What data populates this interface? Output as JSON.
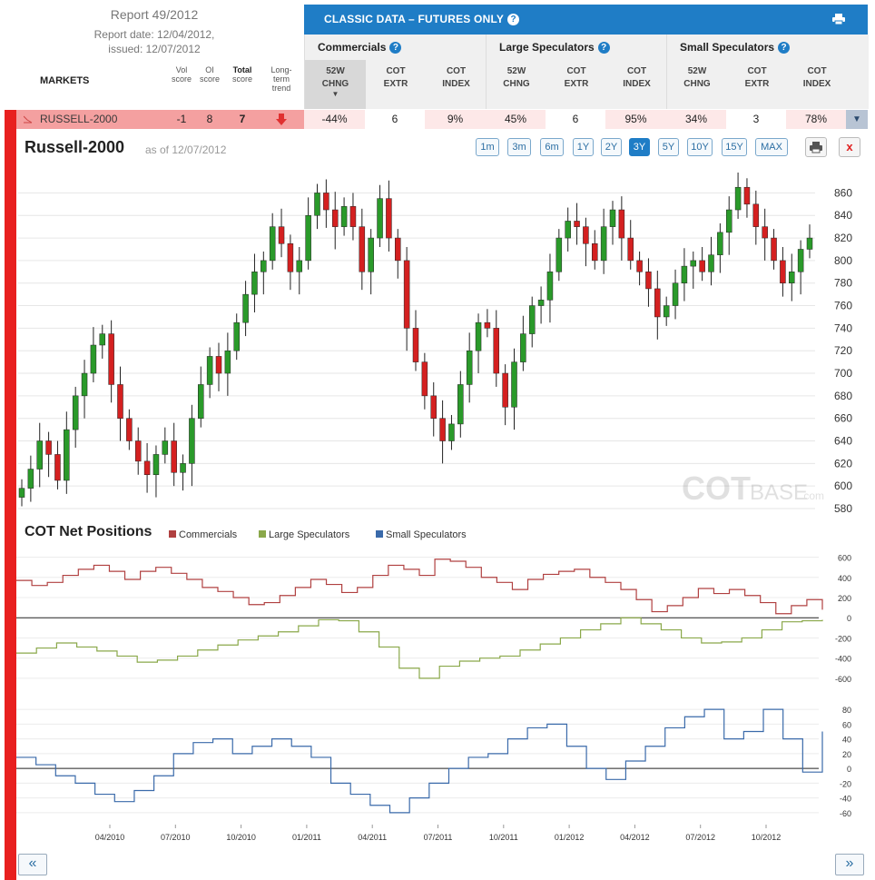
{
  "report": {
    "title": "Report 49/2012",
    "date_line": "Report date: 12/04/2012,",
    "issued_line": "issued: 12/07/2012"
  },
  "columns": {
    "markets": "MARKETS",
    "vol_score": [
      "Vol",
      "score"
    ],
    "oi_score": [
      "OI",
      "score"
    ],
    "total_score": [
      "Total",
      "score"
    ],
    "long_term": [
      "Long-",
      "term",
      "trend"
    ]
  },
  "banner": {
    "title": "CLASSIC DATA – FUTURES ONLY",
    "help": "?"
  },
  "groups": [
    {
      "title": "Commercials",
      "subs": [
        [
          "52W",
          "CHNG"
        ],
        [
          "COT",
          "EXTR"
        ],
        [
          "COT",
          "INDEX"
        ]
      ]
    },
    {
      "title": "Large Speculators",
      "subs": [
        [
          "52W",
          "CHNG"
        ],
        [
          "COT",
          "EXTR"
        ],
        [
          "COT",
          "INDEX"
        ]
      ]
    },
    {
      "title": "Small Speculators",
      "subs": [
        [
          "52W",
          "CHNG"
        ],
        [
          "COT",
          "EXTR"
        ],
        [
          "COT",
          "INDEX"
        ]
      ]
    }
  ],
  "row": {
    "market": "RUSSELL-2000",
    "vol": "-1",
    "oi": "8",
    "total": "7",
    "trend": "down",
    "values": [
      "-44%",
      "6",
      "9%",
      "45%",
      "6",
      "95%",
      "34%",
      "3",
      "78%"
    ]
  },
  "chart": {
    "title": "Russell-2000",
    "as_of": "as of 12/07/2012",
    "ranges": [
      "1m",
      "3m",
      "6m",
      "1Y",
      "2Y",
      "3Y",
      "5Y",
      "10Y",
      "15Y",
      "MAX"
    ],
    "active_range": "3Y",
    "close_label": "x",
    "watermark_main": "COT",
    "watermark_sub": "BASE",
    "watermark_tld": ".com",
    "price_ticks": [
      "860",
      "840",
      "820",
      "800",
      "780",
      "760",
      "740",
      "720",
      "700",
      "680",
      "660",
      "640",
      "620",
      "600",
      "580"
    ],
    "cot_title": "COT Net Positions",
    "legend": [
      "Commercials",
      "Large Speculators",
      "Small Speculators"
    ],
    "legend_colors": [
      "#b04040",
      "#8aa84a",
      "#3a6aaa"
    ],
    "net_ticks": [
      "600",
      "400",
      "200",
      "0",
      "-200",
      "-400",
      "-600"
    ],
    "small_ticks": [
      "80",
      "60",
      "40",
      "20",
      "0",
      "-20",
      "-40",
      "-60"
    ],
    "x_labels": [
      "04/2010",
      "07/2010",
      "10/2010",
      "01/2011",
      "04/2011",
      "07/2011",
      "10/2011",
      "01/2012",
      "04/2012",
      "07/2012",
      "10/2012"
    ]
  },
  "chart_data": [
    {
      "type": "candlestick",
      "title": "Russell-2000",
      "ylim": [
        580,
        870
      ],
      "x_range": [
        "12/2009",
        "12/2012"
      ],
      "close": [
        598,
        615,
        640,
        628,
        605,
        650,
        680,
        700,
        725,
        735,
        690,
        660,
        640,
        622,
        610,
        628,
        640,
        612,
        620,
        660,
        690,
        715,
        700,
        720,
        745,
        770,
        790,
        800,
        830,
        815,
        790,
        800,
        840,
        860,
        845,
        830,
        848,
        830,
        790,
        820,
        855,
        820,
        800,
        740,
        710,
        680,
        660,
        640,
        655,
        690,
        720,
        745,
        740,
        700,
        670,
        710,
        735,
        760,
        765,
        790,
        820,
        835,
        830,
        815,
        800,
        830,
        845,
        820,
        800,
        790,
        775,
        750,
        760,
        780,
        795,
        800,
        790,
        805,
        825,
        845,
        865,
        850,
        830,
        820,
        800,
        780,
        790,
        810,
        820
      ]
    },
    {
      "type": "line",
      "title": "COT Net Positions",
      "series_names": [
        "Commercials",
        "Large Speculators",
        "Small Speculators"
      ],
      "commercials": [
        370,
        320,
        350,
        420,
        480,
        520,
        460,
        380,
        460,
        500,
        440,
        380,
        300,
        260,
        200,
        130,
        150,
        220,
        300,
        380,
        330,
        250,
        300,
        420,
        520,
        480,
        420,
        580,
        560,
        500,
        400,
        350,
        280,
        380,
        430,
        460,
        480,
        400,
        350,
        280,
        180,
        60,
        120,
        200,
        290,
        240,
        280,
        220,
        150,
        40,
        120,
        180,
        80
      ],
      "large_speculators": [
        -350,
        -300,
        -250,
        -290,
        -330,
        -380,
        -440,
        -420,
        -380,
        -320,
        -270,
        -220,
        -180,
        -140,
        -80,
        -20,
        -30,
        -140,
        -290,
        -500,
        -600,
        -480,
        -430,
        -400,
        -380,
        -320,
        -260,
        -200,
        -120,
        -60,
        0,
        -60,
        -120,
        -200,
        -250,
        -240,
        -200,
        -120,
        -40,
        -30,
        -20
      ],
      "small_speculators": [
        15,
        5,
        -10,
        -20,
        -35,
        -45,
        -30,
        -10,
        20,
        35,
        40,
        20,
        30,
        40,
        30,
        15,
        -20,
        -35,
        -50,
        -60,
        -40,
        -20,
        0,
        15,
        20,
        40,
        55,
        60,
        30,
        0,
        -15,
        10,
        30,
        55,
        70,
        80,
        40,
        50,
        80,
        40,
        -5,
        50
      ],
      "ylim_net": [
        -700,
        650
      ],
      "ylim_small": [
        -70,
        90
      ]
    }
  ]
}
